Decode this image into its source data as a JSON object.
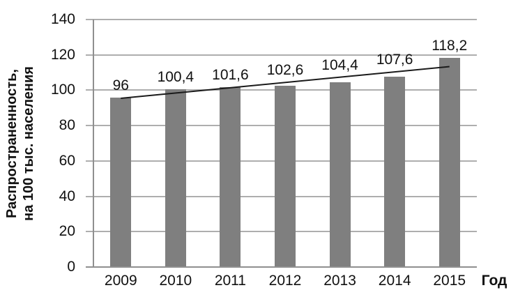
{
  "chart_data": {
    "type": "bar",
    "categories": [
      "2009",
      "2010",
      "2011",
      "2012",
      "2013",
      "2014",
      "2015"
    ],
    "values": [
      96,
      100.4,
      101.6,
      102.6,
      104.4,
      107.6,
      118.2
    ],
    "value_labels": [
      "96",
      "100,4",
      "101,6",
      "102,6",
      "104,4",
      "107,6",
      "118,2"
    ],
    "title": "",
    "xlabel": "Год",
    "ylabel": "Распространенность, на 100 тыс. населения",
    "ylabel_lines": [
      "Распространенность,",
      "на 100 тыс. населения"
    ],
    "ylim": [
      0,
      140
    ],
    "yticks": [
      0,
      20,
      40,
      60,
      80,
      100,
      120,
      140
    ],
    "grid": "horizontal",
    "legend": "none",
    "trendline": "linear",
    "colors": {
      "bar": "#7f7f7f",
      "grid": "#aeaeae",
      "axis": "#8f8f8f",
      "trend": "#1a1a1a",
      "text": "#111111"
    }
  }
}
